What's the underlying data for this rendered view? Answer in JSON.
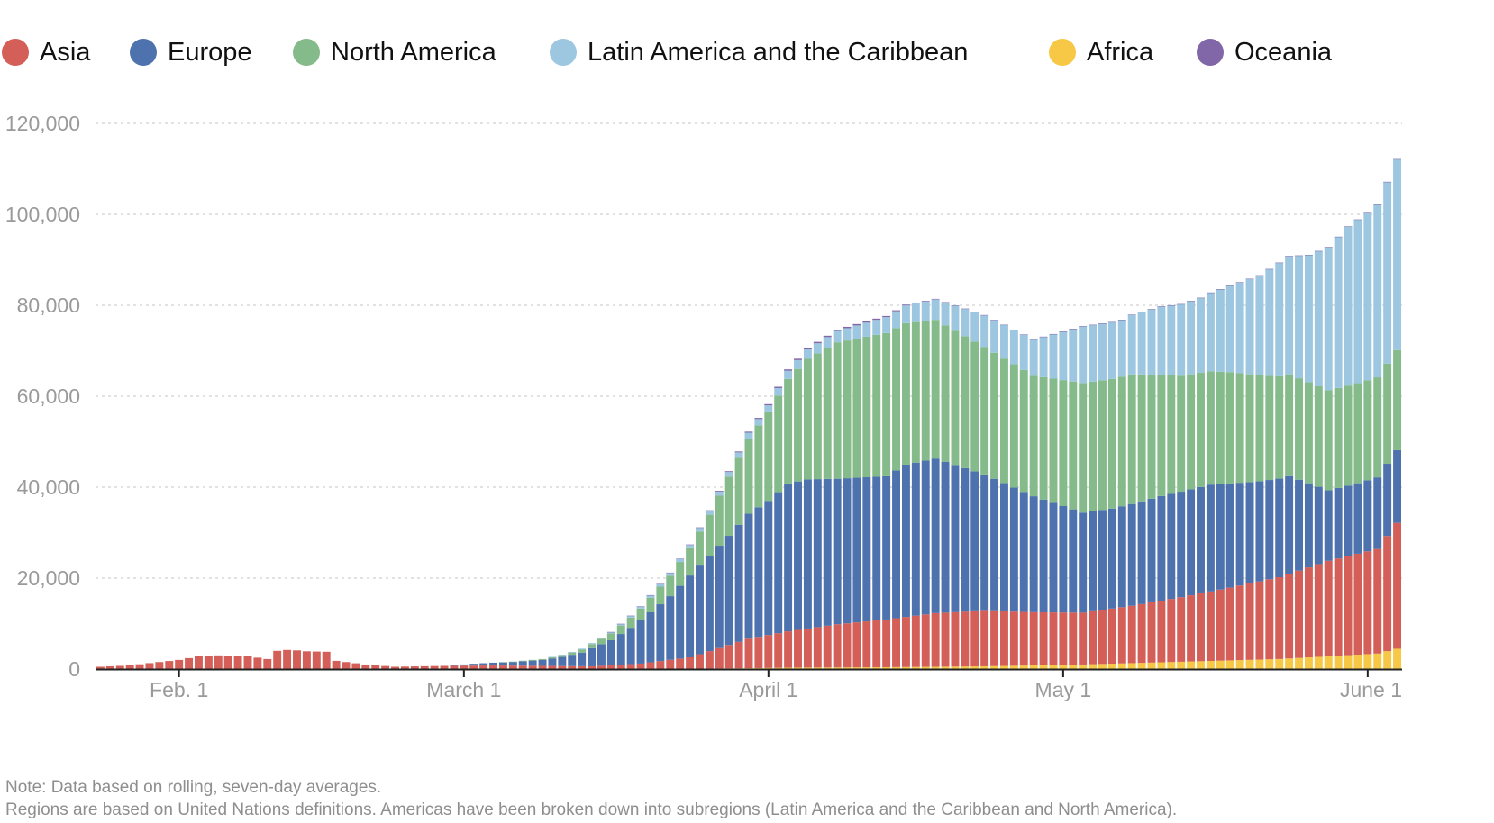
{
  "legend": [
    {
      "name": "Asia",
      "color": "#d35f58"
    },
    {
      "name": "Europe",
      "color": "#4d72ae"
    },
    {
      "name": "North America",
      "color": "#85bb8a"
    },
    {
      "name": "Latin America and the Caribbean",
      "color": "#9dc7e0"
    },
    {
      "name": "Africa",
      "color": "#f6c845"
    },
    {
      "name": "Oceania",
      "color": "#8167a7"
    }
  ],
  "notes": {
    "line1": "Note: Data based on rolling, seven-day averages.",
    "line2": "Regions are based on United Nations definitions. Americas have been broken down into subregions (Latin America and the Caribbean and North America)."
  },
  "chart_data": {
    "type": "bar",
    "stacked": true,
    "x_start": "2020-01-24",
    "x_end": "2020-06-04",
    "ylim": [
      0,
      120000
    ],
    "y_ticks": [
      {
        "value": 0,
        "label": "0"
      },
      {
        "value": 20000,
        "label": "20,000"
      },
      {
        "value": 40000,
        "label": "40,000"
      },
      {
        "value": 60000,
        "label": "60,000"
      },
      {
        "value": 80000,
        "label": "80,000"
      },
      {
        "value": 100000,
        "label": "100,000"
      },
      {
        "value": 120000,
        "label": "120,000"
      }
    ],
    "x_ticks": [
      {
        "date": "2020-02-01",
        "label": "Feb. 1"
      },
      {
        "date": "2020-03-01",
        "label": "March 1"
      },
      {
        "date": "2020-04-01",
        "label": "April 1"
      },
      {
        "date": "2020-05-01",
        "label": "May 1"
      },
      {
        "date": "2020-06-01",
        "label": "June 1"
      }
    ],
    "grid": "horizontal-dashed",
    "legend_position": "top",
    "series_order": [
      "Africa",
      "Asia",
      "Europe",
      "North America",
      "Latin America and the Caribbean",
      "Oceania"
    ],
    "series": [
      {
        "name": "Africa",
        "color": "#f6c845",
        "knots": [
          [
            0,
            0
          ],
          [
            55,
            0
          ],
          [
            65,
            150
          ],
          [
            70,
            300
          ],
          [
            80,
            400
          ],
          [
            90,
            600
          ],
          [
            100,
            1000
          ],
          [
            110,
            1600
          ],
          [
            120,
            2200
          ],
          [
            125,
            2800
          ],
          [
            130,
            3400
          ],
          [
            133,
            5000
          ]
        ]
      },
      {
        "name": "Asia",
        "color": "#d35f58",
        "knots": [
          [
            0,
            500
          ],
          [
            3,
            800
          ],
          [
            5,
            1300
          ],
          [
            8,
            2000
          ],
          [
            10,
            2800
          ],
          [
            12,
            3000
          ],
          [
            15,
            2800
          ],
          [
            17,
            2200
          ],
          [
            18,
            4000
          ],
          [
            19,
            4200
          ],
          [
            20,
            4100
          ],
          [
            21,
            3900
          ],
          [
            23,
            3800
          ],
          [
            24,
            1800
          ],
          [
            27,
            1000
          ],
          [
            30,
            500
          ],
          [
            35,
            700
          ],
          [
            40,
            800
          ],
          [
            45,
            700
          ],
          [
            50,
            600
          ],
          [
            55,
            1200
          ],
          [
            60,
            2500
          ],
          [
            63,
            4500
          ],
          [
            66,
            6500
          ],
          [
            70,
            8000
          ],
          [
            75,
            9500
          ],
          [
            80,
            10500
          ],
          [
            85,
            11800
          ],
          [
            90,
            12200
          ],
          [
            95,
            11700
          ],
          [
            100,
            11400
          ],
          [
            105,
            12600
          ],
          [
            110,
            14200
          ],
          [
            115,
            16000
          ],
          [
            120,
            18000
          ],
          [
            125,
            21000
          ],
          [
            130,
            23000
          ],
          [
            133,
            30000
          ]
        ]
      },
      {
        "name": "Europe",
        "color": "#4d72ae",
        "knots": [
          [
            0,
            0
          ],
          [
            35,
            0
          ],
          [
            38,
            400
          ],
          [
            42,
            800
          ],
          [
            45,
            1300
          ],
          [
            47,
            2000
          ],
          [
            49,
            3000
          ],
          [
            50,
            4000
          ],
          [
            52,
            5500
          ],
          [
            54,
            8000
          ],
          [
            56,
            11000
          ],
          [
            58,
            14000
          ],
          [
            60,
            18000
          ],
          [
            62,
            21000
          ],
          [
            64,
            24000
          ],
          [
            66,
            27500
          ],
          [
            68,
            29500
          ],
          [
            70,
            32500
          ],
          [
            72,
            32800
          ],
          [
            75,
            32000
          ],
          [
            80,
            31500
          ],
          [
            82,
            33500
          ],
          [
            85,
            34000
          ],
          [
            90,
            30000
          ],
          [
            95,
            25500
          ],
          [
            100,
            22000
          ],
          [
            103,
            22000
          ],
          [
            108,
            23000
          ],
          [
            113,
            23500
          ],
          [
            118,
            22000
          ],
          [
            121,
            21500
          ],
          [
            125,
            15500
          ],
          [
            128,
            15500
          ],
          [
            132,
            16000
          ],
          [
            133,
            16200
          ]
        ]
      },
      {
        "name": "North America",
        "color": "#85bb8a",
        "knots": [
          [
            0,
            0
          ],
          [
            40,
            0
          ],
          [
            45,
            200
          ],
          [
            48,
            500
          ],
          [
            50,
            900
          ],
          [
            52,
            1500
          ],
          [
            55,
            2600
          ],
          [
            58,
            4500
          ],
          [
            60,
            6000
          ],
          [
            62,
            9000
          ],
          [
            64,
            13000
          ],
          [
            66,
            16500
          ],
          [
            68,
            19500
          ],
          [
            70,
            23000
          ],
          [
            72,
            26500
          ],
          [
            75,
            30000
          ],
          [
            80,
            31500
          ],
          [
            85,
            30500
          ],
          [
            90,
            28000
          ],
          [
            95,
            26500
          ],
          [
            100,
            28500
          ],
          [
            105,
            28500
          ],
          [
            110,
            25500
          ],
          [
            115,
            24500
          ],
          [
            120,
            22500
          ],
          [
            125,
            22000
          ],
          [
            130,
            22000
          ],
          [
            133,
            22000
          ]
        ]
      },
      {
        "name": "Latin America and the Caribbean",
        "color": "#9dc7e0",
        "knots": [
          [
            0,
            0
          ],
          [
            45,
            0
          ],
          [
            52,
            300
          ],
          [
            56,
            500
          ],
          [
            60,
            700
          ],
          [
            63,
            900
          ],
          [
            66,
            1300
          ],
          [
            68,
            1500
          ],
          [
            70,
            1800
          ],
          [
            75,
            2500
          ],
          [
            80,
            3500
          ],
          [
            85,
            4500
          ],
          [
            90,
            7000
          ],
          [
            95,
            8000
          ],
          [
            100,
            12500
          ],
          [
            104,
            12500
          ],
          [
            108,
            15000
          ],
          [
            112,
            16500
          ],
          [
            115,
            19000
          ],
          [
            118,
            22000
          ],
          [
            120,
            25000
          ],
          [
            123,
            28000
          ],
          [
            127,
            35000
          ],
          [
            130,
            38000
          ],
          [
            133,
            44000
          ]
        ]
      },
      {
        "name": "Oceania",
        "color": "#8167a7",
        "knots": [
          [
            0,
            0
          ],
          [
            50,
            0
          ],
          [
            56,
            50
          ],
          [
            62,
            150
          ],
          [
            70,
            300
          ],
          [
            78,
            300
          ],
          [
            85,
            100
          ],
          [
            95,
            20
          ],
          [
            133,
            10
          ]
        ]
      }
    ]
  }
}
